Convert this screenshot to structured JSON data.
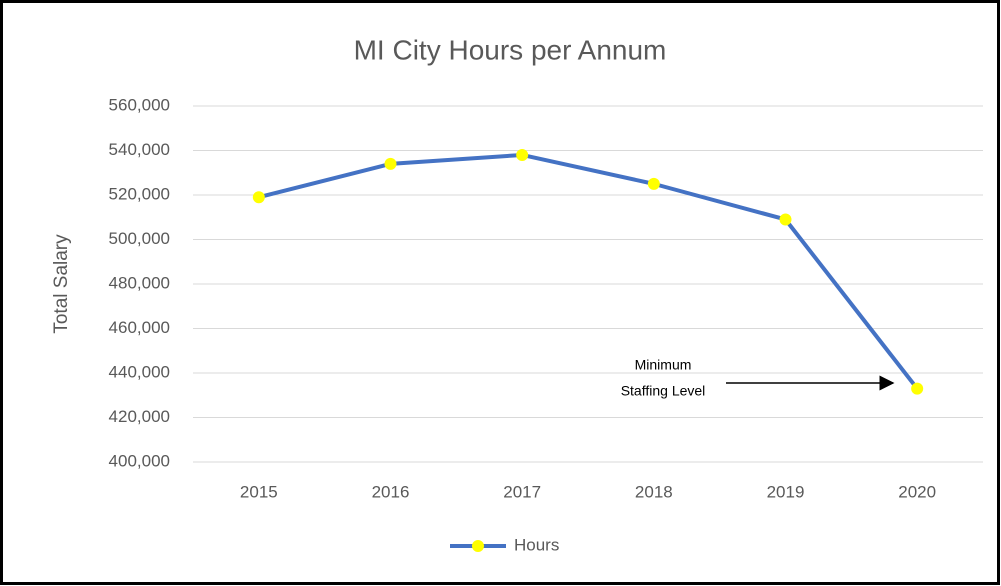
{
  "chart_data": {
    "type": "line",
    "title": "MI City Hours per Annum",
    "y_label": "Total Salary",
    "categories": [
      "2015",
      "2016",
      "2017",
      "2018",
      "2019",
      "2020"
    ],
    "series": [
      {
        "name": "Hours",
        "color": "#4472c4",
        "marker_color": "#ffff00",
        "values": [
          519000,
          534000,
          538000,
          525000,
          509000,
          433000
        ]
      }
    ],
    "ylim": [
      400000,
      560000
    ],
    "yticks": [
      {
        "value": 400000,
        "label": "400,000"
      },
      {
        "value": 420000,
        "label": "420,000"
      },
      {
        "value": 440000,
        "label": "440,000"
      },
      {
        "value": 460000,
        "label": "460,000"
      },
      {
        "value": 480000,
        "label": "480,000"
      },
      {
        "value": 500000,
        "label": "500,000"
      },
      {
        "value": 520000,
        "label": "520,000"
      },
      {
        "value": 540000,
        "label": "540,000"
      },
      {
        "value": 560000,
        "label": "560,000"
      }
    ],
    "grid": true,
    "legend": "bottom",
    "annotation": [
      "Minimum",
      "Staffing Level"
    ]
  }
}
